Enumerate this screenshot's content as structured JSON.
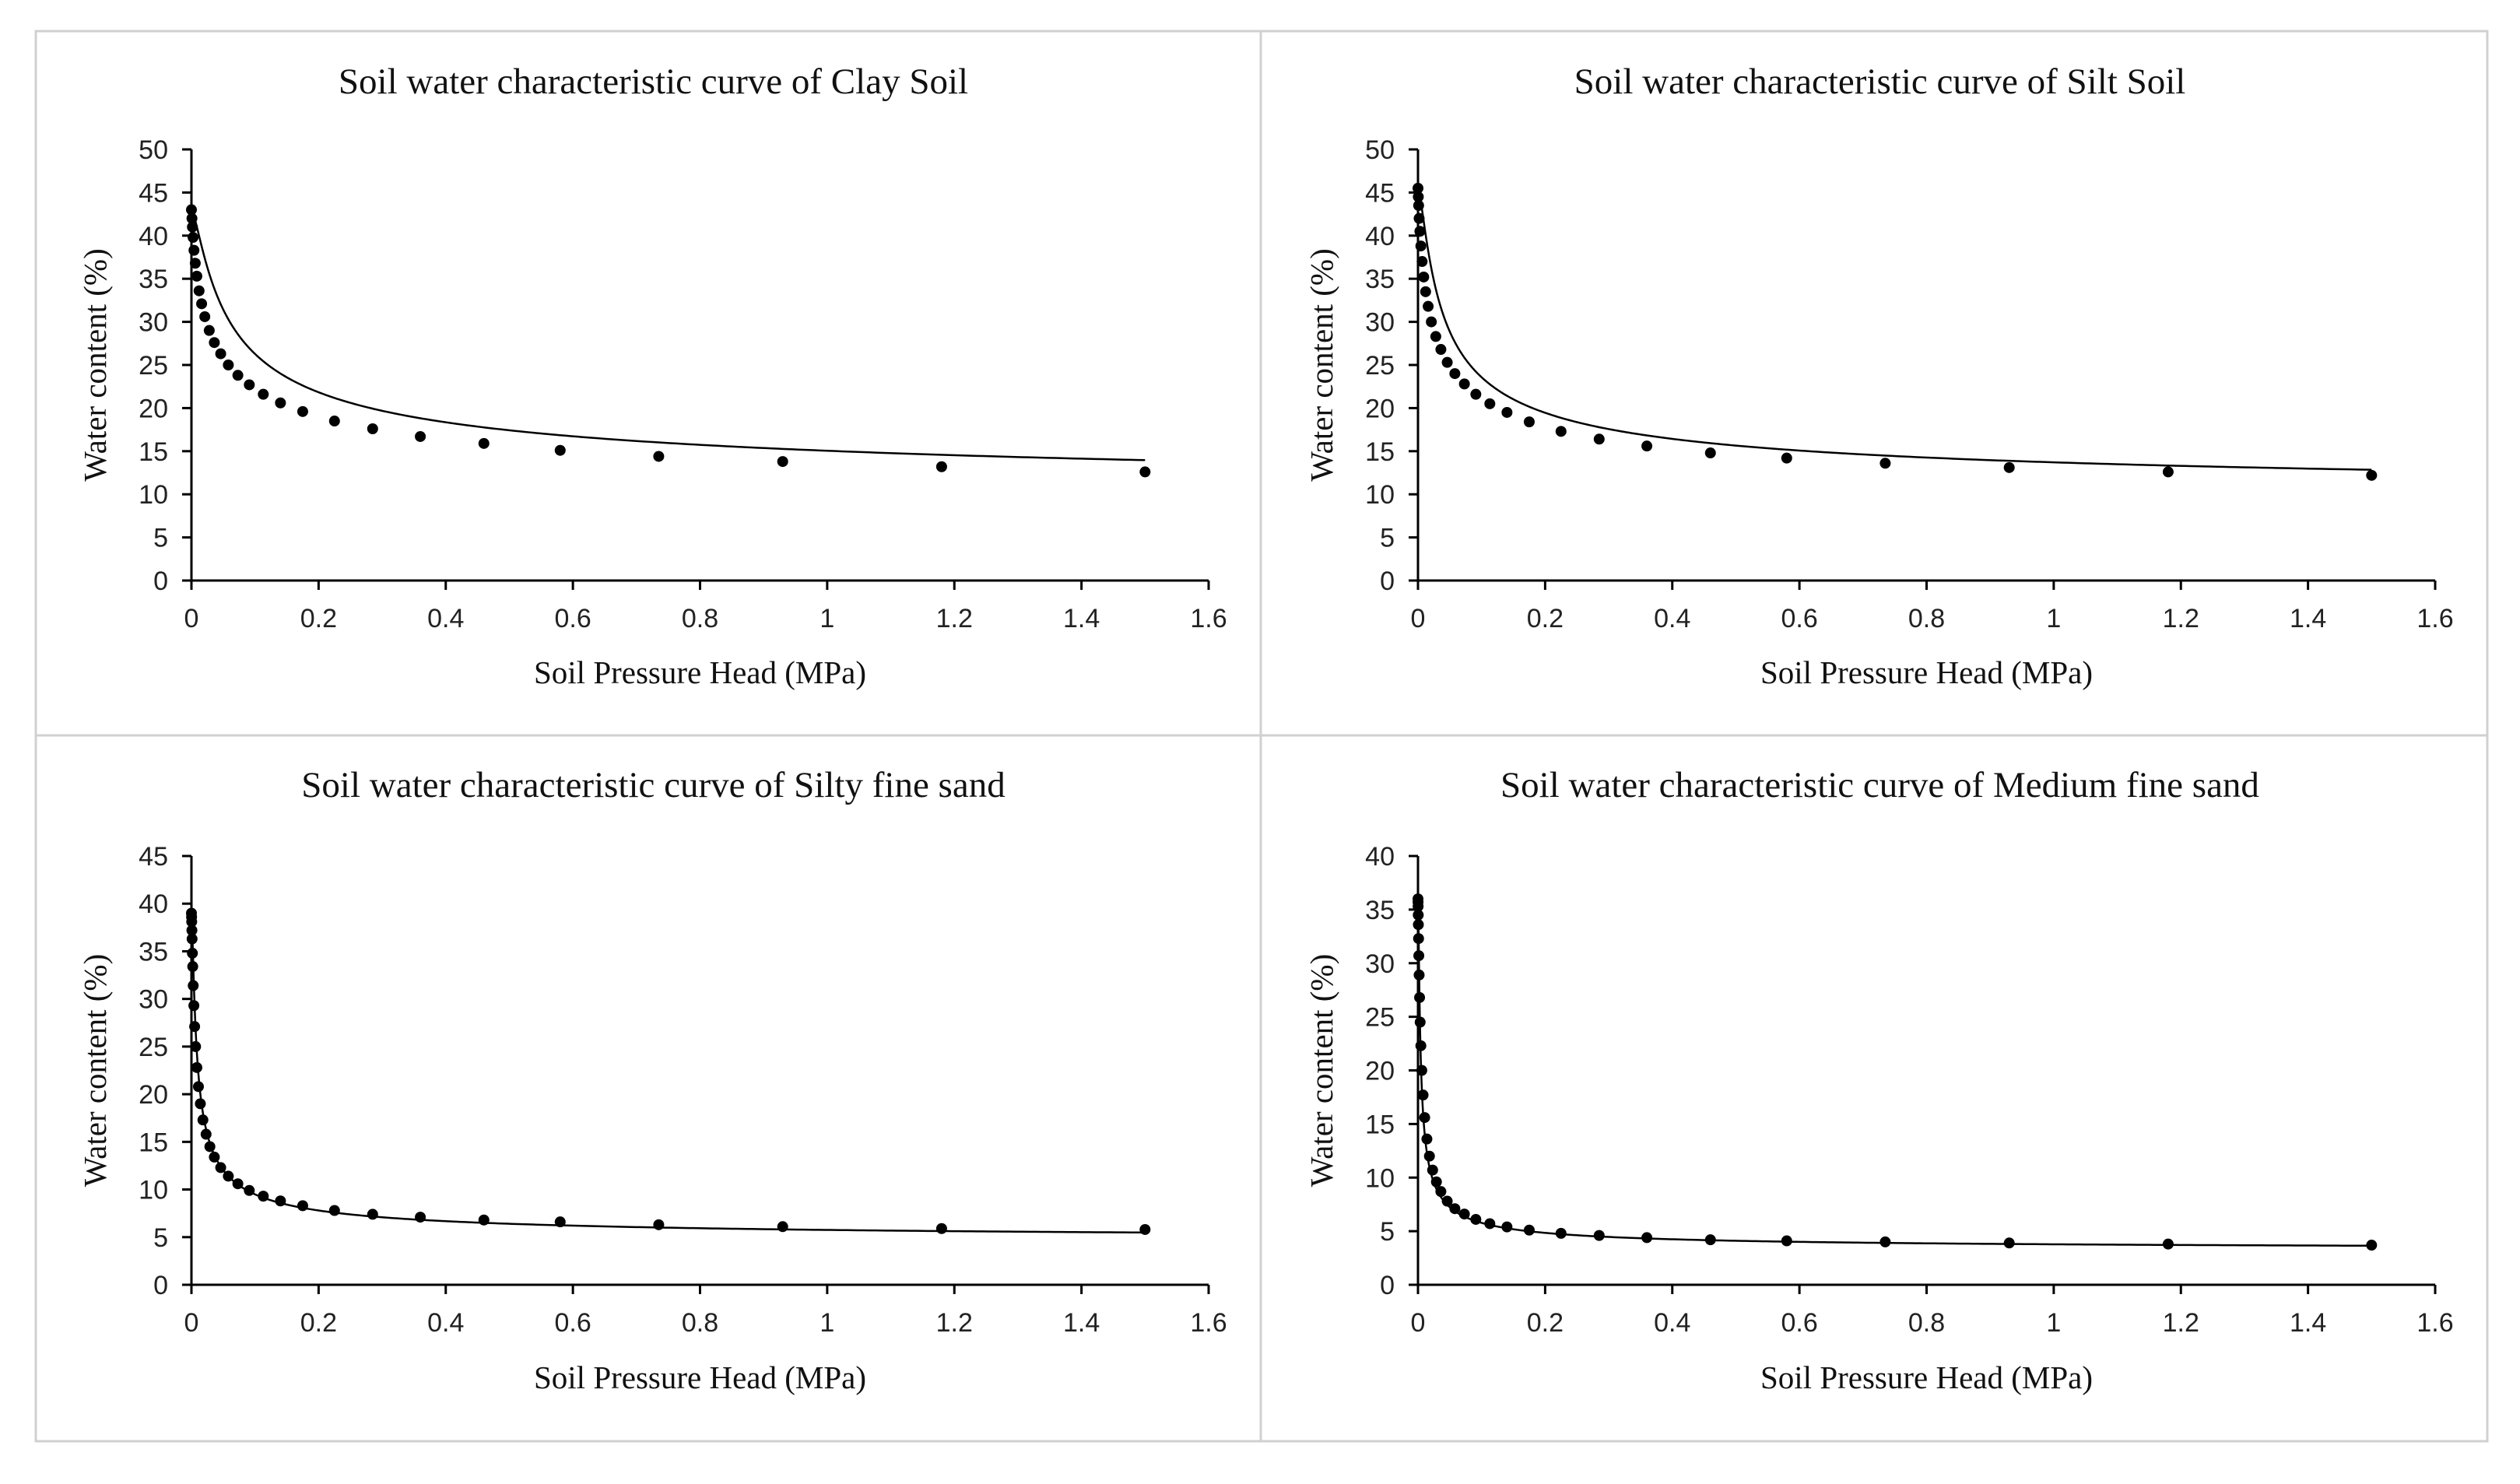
{
  "chart_data": [
    {
      "type": "line",
      "title": "Soil water characteristic curve of Clay Soil",
      "xlabel": "Soil Pressure Head (MPa)",
      "ylabel": "Water content (%)",
      "xlim": [
        0,
        1.6
      ],
      "ylim": [
        0,
        50
      ],
      "xticks": [
        0,
        0.2,
        0.4,
        0.6,
        0.8,
        1,
        1.2,
        1.4,
        1.6
      ],
      "yticks": [
        0,
        5,
        10,
        15,
        20,
        25,
        30,
        35,
        40,
        45,
        50
      ],
      "curve": {
        "theta_s": 43.0,
        "theta_r": 8.5,
        "a": 40,
        "n": 1.45
      },
      "series": [
        {
          "name": "Clay Soil",
          "x": [
            0,
            0.0008,
            0.0015,
            0.0025,
            0.004,
            0.006,
            0.0085,
            0.012,
            0.016,
            0.021,
            0.028,
            0.036,
            0.046,
            0.058,
            0.073,
            0.091,
            0.113,
            0.14,
            0.175,
            0.225,
            0.285,
            0.36,
            0.46,
            0.58,
            0.735,
            0.93,
            1.18,
            1.5
          ],
          "y": [
            43.0,
            42.0,
            41.0,
            39.8,
            38.3,
            36.8,
            35.3,
            33.6,
            32.1,
            30.6,
            29.0,
            27.6,
            26.3,
            25.0,
            23.8,
            22.7,
            21.6,
            20.6,
            19.6,
            18.5,
            17.6,
            16.7,
            15.9,
            15.1,
            14.4,
            13.8,
            13.2,
            12.6
          ]
        }
      ]
    },
    {
      "type": "line",
      "title": "Soil water characteristic curve of Silt Soil",
      "xlabel": "Soil Pressure Head (MPa)",
      "ylabel": "Water content (%)",
      "xlim": [
        0,
        1.6
      ],
      "ylim": [
        0,
        50
      ],
      "xticks": [
        0,
        0.2,
        0.4,
        0.6,
        0.8,
        1,
        1.2,
        1.4,
        1.6
      ],
      "yticks": [
        0,
        5,
        10,
        15,
        20,
        25,
        30,
        35,
        40,
        45,
        50
      ],
      "curve": {
        "theta_s": 45.5,
        "theta_r": 9.0,
        "a": 60,
        "n": 1.5
      },
      "series": [
        {
          "name": "Silt Soil",
          "x": [
            0,
            0.0005,
            0.001,
            0.0018,
            0.003,
            0.0045,
            0.0065,
            0.009,
            0.012,
            0.016,
            0.021,
            0.028,
            0.036,
            0.046,
            0.058,
            0.073,
            0.091,
            0.113,
            0.14,
            0.175,
            0.225,
            0.285,
            0.36,
            0.46,
            0.58,
            0.735,
            0.93,
            1.18,
            1.5
          ],
          "y": [
            45.5,
            44.5,
            43.5,
            42.0,
            40.5,
            38.8,
            37.0,
            35.2,
            33.5,
            31.8,
            30.0,
            28.3,
            26.8,
            25.3,
            24.0,
            22.8,
            21.6,
            20.5,
            19.5,
            18.4,
            17.3,
            16.4,
            15.6,
            14.8,
            14.2,
            13.6,
            13.1,
            12.6,
            12.2
          ]
        }
      ]
    },
    {
      "type": "line",
      "title": "Soil water characteristic curve of Silty fine sand",
      "xlabel": "Soil Pressure Head (MPa)",
      "ylabel": "Water content (%)",
      "xlim": [
        0,
        1.6
      ],
      "ylim": [
        0,
        45
      ],
      "xticks": [
        0,
        0.2,
        0.4,
        0.6,
        0.8,
        1,
        1.2,
        1.4,
        1.6
      ],
      "yticks": [
        0,
        5,
        10,
        15,
        20,
        25,
        30,
        35,
        40,
        45
      ],
      "curve": {
        "theta_s": 39.0,
        "theta_r": 4.5,
        "a": 250,
        "n": 1.6
      },
      "series": [
        {
          "name": "Silty fine sand",
          "x": [
            0,
            0.0002,
            0.0004,
            0.0007,
            0.001,
            0.0015,
            0.002,
            0.0028,
            0.0038,
            0.005,
            0.0065,
            0.0085,
            0.011,
            0.014,
            0.018,
            0.023,
            0.029,
            0.036,
            0.046,
            0.058,
            0.073,
            0.091,
            0.113,
            0.14,
            0.175,
            0.225,
            0.285,
            0.36,
            0.46,
            0.58,
            0.735,
            0.93,
            1.18,
            1.5
          ],
          "y": [
            39.0,
            38.6,
            38.1,
            37.2,
            36.3,
            34.8,
            33.4,
            31.4,
            29.3,
            27.1,
            25.0,
            22.8,
            20.8,
            19.0,
            17.3,
            15.8,
            14.5,
            13.4,
            12.3,
            11.4,
            10.6,
            9.9,
            9.3,
            8.8,
            8.3,
            7.8,
            7.4,
            7.1,
            6.8,
            6.6,
            6.3,
            6.1,
            5.9,
            5.8
          ]
        }
      ]
    },
    {
      "type": "line",
      "title": "Soil water characteristic curve of Medium fine sand",
      "xlabel": "Soil Pressure Head (MPa)",
      "ylabel": "Water content (%)",
      "xlim": [
        0,
        1.6
      ],
      "ylim": [
        0,
        40
      ],
      "xticks": [
        0,
        0.2,
        0.4,
        0.6,
        0.8,
        1,
        1.2,
        1.4,
        1.6
      ],
      "yticks": [
        0,
        5,
        10,
        15,
        20,
        25,
        30,
        35,
        40
      ],
      "curve": {
        "theta_s": 36.0,
        "theta_r": 3.2,
        "a": 500,
        "n": 1.65
      },
      "series": [
        {
          "name": "Medium fine sand",
          "x": [
            0,
            0.0001,
            0.0002,
            0.0004,
            0.0006,
            0.0009,
            0.0013,
            0.0018,
            0.0025,
            0.0034,
            0.0045,
            0.006,
            0.008,
            0.0105,
            0.014,
            0.018,
            0.023,
            0.029,
            0.036,
            0.046,
            0.058,
            0.073,
            0.091,
            0.113,
            0.14,
            0.175,
            0.225,
            0.285,
            0.36,
            0.46,
            0.58,
            0.735,
            0.93,
            1.18,
            1.5
          ],
          "y": [
            36.0,
            35.7,
            35.3,
            34.5,
            33.6,
            32.3,
            30.7,
            28.9,
            26.8,
            24.5,
            22.3,
            20.0,
            17.7,
            15.6,
            13.6,
            12.0,
            10.7,
            9.6,
            8.7,
            7.8,
            7.1,
            6.6,
            6.1,
            5.7,
            5.4,
            5.1,
            4.8,
            4.6,
            4.4,
            4.2,
            4.1,
            4.0,
            3.9,
            3.8,
            3.7
          ]
        }
      ]
    }
  ]
}
